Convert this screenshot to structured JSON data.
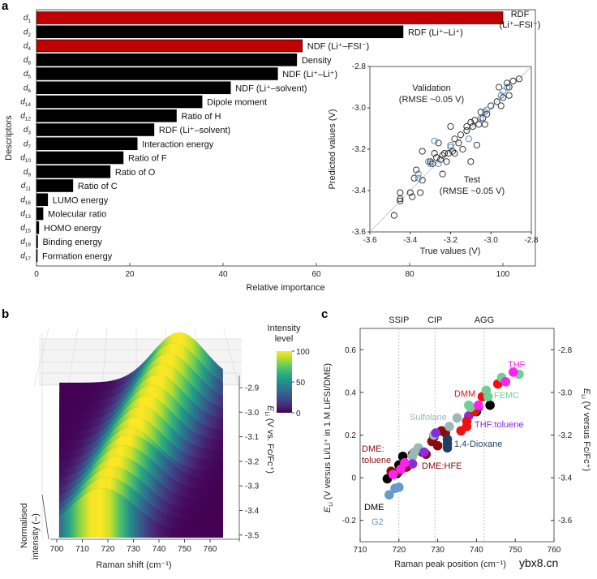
{
  "panels": {
    "a": "a",
    "b": "b",
    "c": "c"
  },
  "watermark": "ybx8.cn",
  "chart_data": [
    {
      "panel": "a",
      "type": "bar",
      "orientation": "horizontal",
      "xlabel": "Relative importance",
      "ylabel": "Descriptors",
      "xlim": [
        0,
        107
      ],
      "xticks": [
        "0",
        "20",
        "40",
        "60",
        "80",
        "100"
      ],
      "colors": {
        "highlight": "#c00000",
        "default": "#000000"
      },
      "bars": [
        {
          "sym": "d",
          "sub": "1",
          "label": [
            "RDF",
            "(Li⁺–FSI⁻)"
          ],
          "value": 100,
          "highlight": true
        },
        {
          "sym": "d",
          "sub": "2",
          "label": [
            "RDF (Li⁺–Li⁺)"
          ],
          "value": 78.6,
          "highlight": false
        },
        {
          "sym": "d",
          "sub": "4",
          "label": [
            "NDF (Li⁺–FSI⁻)"
          ],
          "value": 57.0,
          "highlight": true
        },
        {
          "sym": "d",
          "sub": "8",
          "label": [
            "Density"
          ],
          "value": 55.8,
          "highlight": false
        },
        {
          "sym": "d",
          "sub": "5",
          "label": [
            "NDF (Li⁺–Li⁺)"
          ],
          "value": 51.7,
          "highlight": false
        },
        {
          "sym": "d",
          "sub": "6",
          "label": [
            "NDF (Li⁺–solvent)"
          ],
          "value": 41.6,
          "highlight": false
        },
        {
          "sym": "d",
          "sub": "14",
          "label": [
            "Dipole moment"
          ],
          "value": 35.5,
          "highlight": false
        },
        {
          "sym": "d",
          "sub": "12",
          "label": [
            "Ratio of H"
          ],
          "value": 30.0,
          "highlight": false
        },
        {
          "sym": "d",
          "sub": "3",
          "label": [
            "RDF (Li⁺–solvent)"
          ],
          "value": 25.2,
          "highlight": false
        },
        {
          "sym": "d",
          "sub": "7",
          "label": [
            "Interaction energy"
          ],
          "value": 21.6,
          "highlight": false
        },
        {
          "sym": "d",
          "sub": "10",
          "label": [
            "Ratio of F"
          ],
          "value": 18.6,
          "highlight": false
        },
        {
          "sym": "d",
          "sub": "9",
          "label": [
            "Ratio of O"
          ],
          "value": 15.8,
          "highlight": false
        },
        {
          "sym": "d",
          "sub": "11",
          "label": [
            "Ratio of C"
          ],
          "value": 7.8,
          "highlight": false
        },
        {
          "sym": "d",
          "sub": "16",
          "label": [
            "LUMO energy"
          ],
          "value": 2.4,
          "highlight": false
        },
        {
          "sym": "d",
          "sub": "13",
          "label": [
            "Molecular ratio"
          ],
          "value": 1.4,
          "highlight": false
        },
        {
          "sym": "d",
          "sub": "15",
          "label": [
            "HOMO energy"
          ],
          "value": 0.5,
          "highlight": false
        },
        {
          "sym": "d",
          "sub": "18",
          "label": [
            "Binding energy"
          ],
          "value": 0.25,
          "highlight": false
        },
        {
          "sym": "d",
          "sub": "17",
          "label": [
            "Formation energy"
          ],
          "value": 0.1,
          "highlight": false
        }
      ]
    },
    {
      "panel": "a-inset",
      "type": "scatter",
      "xlabel": "True values (V)",
      "ylabel": "Predicted values (V)",
      "xlim": [
        -3.6,
        -2.8
      ],
      "ylim": [
        -3.6,
        -2.8
      ],
      "xticks": [
        "-3.6",
        "-3.4",
        "-3.2",
        "-3.0",
        "-2.8"
      ],
      "yticks": [
        "-3.6",
        "-3.4",
        "-3.2",
        "-3.0",
        "-2.8"
      ],
      "annotations": {
        "validation": [
          "Validation",
          "(RMSE ~0.05 V)"
        ],
        "test": [
          "Test",
          "(RMSE ~0.05 V)"
        ]
      },
      "series": [
        {
          "name": "Validation",
          "color": "#222222",
          "points": [
            [
              -2.86,
              -2.86
            ],
            [
              -2.89,
              -2.87
            ],
            [
              -2.92,
              -2.88
            ],
            [
              -2.91,
              -2.9
            ],
            [
              -2.96,
              -2.9
            ],
            [
              -2.94,
              -2.95
            ],
            [
              -2.97,
              -2.97
            ],
            [
              -2.91,
              -2.94
            ],
            [
              -2.95,
              -2.99
            ],
            [
              -3.0,
              -2.99
            ],
            [
              -3.02,
              -3.03
            ],
            [
              -3.05,
              -3.02
            ],
            [
              -3.04,
              -3.05
            ],
            [
              -3.06,
              -3.08
            ],
            [
              -3.03,
              -3.08
            ],
            [
              -3.08,
              -3.06
            ],
            [
              -3.1,
              -3.07
            ],
            [
              -3.09,
              -3.09
            ],
            [
              -3.12,
              -3.09
            ],
            [
              -3.12,
              -3.11
            ],
            [
              -3.07,
              -3.18
            ],
            [
              -3.15,
              -3.13
            ],
            [
              -3.18,
              -3.15
            ],
            [
              -3.16,
              -3.17
            ],
            [
              -3.2,
              -3.09
            ],
            [
              -3.14,
              -3.2
            ],
            [
              -3.19,
              -3.21
            ],
            [
              -3.21,
              -3.22
            ],
            [
              -3.18,
              -3.22
            ],
            [
              -3.23,
              -3.22
            ],
            [
              -3.24,
              -3.23
            ],
            [
              -3.26,
              -3.17
            ],
            [
              -3.28,
              -3.22
            ],
            [
              -3.25,
              -3.25
            ],
            [
              -3.22,
              -3.26
            ],
            [
              -3.27,
              -3.24
            ],
            [
              -3.3,
              -3.26
            ],
            [
              -3.29,
              -3.27
            ],
            [
              -3.24,
              -3.32
            ],
            [
              -3.1,
              -3.26
            ],
            [
              -3.34,
              -3.21
            ],
            [
              -3.37,
              -3.3
            ],
            [
              -3.38,
              -3.34
            ],
            [
              -3.34,
              -3.35
            ],
            [
              -3.35,
              -3.41
            ],
            [
              -3.4,
              -3.41
            ],
            [
              -3.39,
              -3.43
            ],
            [
              -3.45,
              -3.41
            ],
            [
              -3.45,
              -3.44
            ],
            [
              -3.45,
              -3.45
            ],
            [
              -3.48,
              -3.52
            ]
          ]
        },
        {
          "name": "Test",
          "color": "#4a7fb5",
          "points": [
            [
              -2.92,
              -2.9
            ],
            [
              -2.94,
              -2.92
            ],
            [
              -2.95,
              -2.94
            ],
            [
              -3.02,
              -3.01
            ],
            [
              -3.03,
              -3.02
            ],
            [
              -3.05,
              -3.05
            ],
            [
              -3.11,
              -3.15
            ],
            [
              -3.2,
              -3.18
            ],
            [
              -3.2,
              -3.19
            ],
            [
              -3.26,
              -3.27
            ],
            [
              -3.28,
              -3.16
            ],
            [
              -3.3,
              -3.27
            ],
            [
              -3.31,
              -3.26
            ],
            [
              -3.36,
              -3.32
            ],
            [
              -3.36,
              -3.34
            ]
          ]
        }
      ]
    },
    {
      "panel": "b",
      "type": "surface",
      "xlabel": "Raman shift (cm⁻¹)",
      "xticks": [
        "700",
        "710",
        "720",
        "730",
        "740",
        "750",
        "760"
      ],
      "ylabel": {
        "sym": "E",
        "sub": "Li",
        "rest": " (V vs. Fc/Fc⁺)"
      },
      "yticks": [
        "-2.9",
        "-3.0",
        "-3.1",
        "-3.2",
        "-3.3",
        "-3.4",
        "-3.5"
      ],
      "zlabel": [
        "Normalised",
        "intensity (–)"
      ],
      "colorbar": {
        "title": [
          "Intensity",
          "level"
        ],
        "ticks": [
          "100",
          "50",
          "0"
        ],
        "range": [
          0,
          100
        ]
      },
      "peak_shift": {
        "E_start": -3.48,
        "E_end": -2.88,
        "peak_start": 716,
        "peak_end": 748
      }
    },
    {
      "panel": "c",
      "type": "scatter",
      "xlabel": "Raman peak position (cm⁻¹)",
      "ylabel_left": {
        "sym": "E",
        "sub": "Li",
        "rest": " (V versus Li/Li⁺ in 1 M LiFSI/DME)"
      },
      "ylabel_right": {
        "sym": "E",
        "sub": "Li",
        "rest": " (V versus Fc/Fc⁺)"
      },
      "xlim": [
        710,
        760
      ],
      "ylim": [
        -0.3,
        0.7
      ],
      "xticks": [
        "710",
        "720",
        "730",
        "740",
        "750",
        "760"
      ],
      "yticks_left": [
        "0.6",
        "0.4",
        "0.2",
        "0",
        "-0.2"
      ],
      "yticks_right": [
        "-2.8",
        "-3.0",
        "-3.2",
        "-3.4",
        "-3.6"
      ],
      "regions": [
        {
          "label": "SSIP",
          "x": 720
        },
        {
          "label": "CIP",
          "x": 729.3
        },
        {
          "label": "AGG",
          "x": 742
        }
      ],
      "series": [
        {
          "name": "G2",
          "color": "#6699cc",
          "points": [
            [
              717.5,
              -0.08
            ],
            [
              719,
              -0.05
            ],
            [
              720,
              -0.045
            ]
          ]
        },
        {
          "name": "DME",
          "color": "#000000",
          "points": [
            [
              717,
              -0.005
            ],
            [
              719.5,
              0.02
            ],
            [
              720,
              0.06
            ],
            [
              721,
              0.1
            ],
            [
              740,
              0.31
            ],
            [
              743.5,
              0.34
            ]
          ]
        },
        {
          "name": "DME:toluene",
          "color": "#8b0a0a",
          "points": [
            [
              718,
              0.03
            ],
            [
              720,
              0.03
            ],
            [
              722,
              0.05
            ],
            [
              723.5,
              0.11
            ],
            [
              727,
              0.11
            ],
            [
              728.5,
              0.17
            ],
            [
              730,
              0.15
            ],
            [
              729,
              0.19
            ],
            [
              731,
              0.22
            ],
            [
              732,
              0.21
            ]
          ]
        },
        {
          "name": "DME:HFE",
          "color": "#8b0a0a",
          "points": [
            [
              721,
              0.045
            ],
            [
              726,
              0.12
            ]
          ]
        },
        {
          "name": "Sulfolane",
          "color": "#9ab8b8",
          "points": [
            [
              723.5,
              0.1
            ],
            [
              724,
              0.12
            ],
            [
              725,
              0.14
            ],
            [
              729,
              0.2
            ],
            [
              733,
              0.24
            ],
            [
              735,
              0.28
            ]
          ]
        },
        {
          "name": "1,4-Dioxane",
          "color": "#1f3f5f",
          "points": [
            [
              732.5,
              0.14
            ],
            [
              732.5,
              0.16
            ],
            [
              732.5,
              0.18
            ]
          ]
        },
        {
          "name": "THF:toluene",
          "color": "#8a2be2",
          "points": [
            [
              723.5,
              0.065
            ],
            [
              726.5,
              0.12
            ],
            [
              729.5,
              0.21
            ],
            [
              738,
              0.29
            ],
            [
              740.5,
              0.33
            ]
          ]
        },
        {
          "name": "DMM",
          "color": "#ee1111",
          "points": [
            [
              736,
              0.22
            ],
            [
              737.5,
              0.24
            ],
            [
              737.5,
              0.265
            ],
            [
              739,
              0.32
            ],
            [
              739.5,
              0.31
            ],
            [
              741.5,
              0.38
            ],
            [
              745.5,
              0.44
            ]
          ]
        },
        {
          "name": "FEMC",
          "color": "#6fcf97",
          "points": [
            [
              738,
              0.34
            ],
            [
              738.5,
              0.33
            ],
            [
              742.5,
              0.41
            ],
            [
              743,
              0.38
            ],
            [
              746.5,
              0.47
            ],
            [
              751,
              0.485
            ]
          ]
        },
        {
          "name": "THF",
          "color": "#ff22ee",
          "points": [
            [
              718.5,
              0.015
            ],
            [
              720.5,
              0.04
            ],
            [
              721.5,
              0.07
            ],
            [
              740.5,
              0.34
            ],
            [
              747.5,
              0.45
            ],
            [
              749.5,
              0.495
            ]
          ]
        }
      ]
    }
  ]
}
